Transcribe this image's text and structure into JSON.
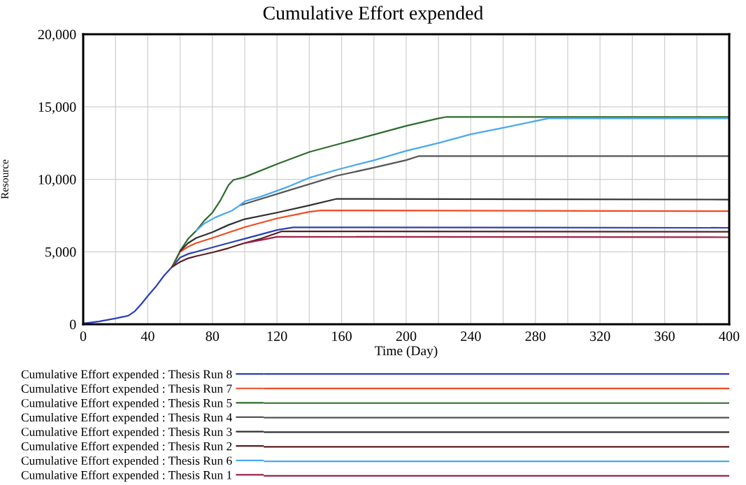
{
  "chart_data": {
    "type": "line",
    "title": "Cumulative Effort expended",
    "xlabel": "Time (Day)",
    "ylabel": "Resource",
    "xlim": [
      0,
      400
    ],
    "ylim": [
      0,
      20000
    ],
    "xticks": [
      0,
      {
        "value": 20,
        "label": null
      },
      40,
      {
        "value": 60,
        "label": null
      },
      80,
      {
        "value": 100,
        "label": null
      },
      120,
      {
        "value": 140,
        "label": null
      },
      160,
      {
        "value": 180,
        "label": null
      },
      200,
      {
        "value": 220,
        "label": null
      },
      240,
      {
        "value": 260,
        "label": null
      },
      280,
      {
        "value": 300,
        "label": null
      },
      320,
      {
        "value": 340,
        "label": null
      },
      360,
      {
        "value": 380,
        "label": null
      },
      400
    ],
    "yticks": [
      0,
      {
        "value": 5000,
        "label": "5,000"
      },
      {
        "value": 10000,
        "label": "10,000"
      },
      {
        "value": 15000,
        "label": "15,000"
      },
      {
        "value": 20000,
        "label": "20,000"
      }
    ],
    "grid": true,
    "legend": "bottom",
    "series": [
      {
        "name": "Cumulative Effort expended : Thesis Run 8",
        "color": "#2b3fb5",
        "x": [
          0,
          10,
          20,
          25,
          28,
          32,
          36,
          40,
          45,
          50,
          55,
          60,
          65,
          70,
          80,
          90,
          100,
          110,
          120,
          130,
          400
        ],
        "values": [
          50,
          200,
          400,
          520,
          600,
          900,
          1400,
          1950,
          2600,
          3350,
          3950,
          4600,
          4850,
          5000,
          5300,
          5600,
          5900,
          6200,
          6500,
          6680,
          6650
        ]
      },
      {
        "name": "Cumulative Effort expended : Thesis Run 7",
        "color": "#f04a22",
        "x": [
          55,
          60,
          65,
          70,
          80,
          100,
          120,
          140,
          147,
          400
        ],
        "values": [
          3950,
          5000,
          5350,
          5600,
          5950,
          6700,
          7300,
          7750,
          7850,
          7800
        ]
      },
      {
        "name": "Cumulative Effort expended : Thesis Run 5",
        "color": "#2e6b2e",
        "x": [
          55,
          60,
          65,
          70,
          75,
          80,
          85,
          90,
          93,
          100,
          120,
          140,
          160,
          180,
          200,
          220,
          225,
          400
        ],
        "values": [
          3950,
          5050,
          5900,
          6450,
          7150,
          7700,
          8550,
          9600,
          9950,
          10150,
          11050,
          11880,
          12480,
          13080,
          13680,
          14200,
          14300,
          14300
        ]
      },
      {
        "name": "Cumulative Effort expended : Thesis Run 4",
        "color": "#555555",
        "x": [
          97,
          100,
          127,
          157,
          180,
          200,
          208,
          400
        ],
        "values": [
          8200,
          8300,
          9220,
          10240,
          10800,
          11320,
          11600,
          11600
        ]
      },
      {
        "name": "Cumulative Effort expended : Thesis Run 3",
        "color": "#303030",
        "x": [
          60,
          65,
          70,
          80,
          90,
          100,
          120,
          140,
          157,
          400
        ],
        "values": [
          5050,
          5600,
          5950,
          6350,
          6850,
          7250,
          7700,
          8200,
          8650,
          8600
        ]
      },
      {
        "name": "Cumulative Effort expended : Thesis Run 2",
        "color": "#5a1e22",
        "x": [
          55,
          60,
          65,
          70,
          80,
          90,
          100,
          110,
          123,
          400
        ],
        "values": [
          3950,
          4300,
          4550,
          4700,
          4950,
          5250,
          5600,
          5900,
          6410,
          6380
        ]
      },
      {
        "name": "Cumulative Effort expended : Thesis Run 6",
        "color": "#4aa8f0",
        "x": [
          70,
          75,
          82,
          92,
          97,
          100,
          110,
          127,
          140,
          157,
          180,
          200,
          220,
          240,
          260,
          288,
          400
        ],
        "values": [
          6450,
          6950,
          7380,
          7830,
          8200,
          8480,
          8800,
          9490,
          10100,
          10650,
          11310,
          11960,
          12500,
          13100,
          13550,
          14200,
          14200
        ]
      },
      {
        "name": "Cumulative Effort expended : Thesis Run 1",
        "color": "#a0204a",
        "x": [
          100,
          112,
          120,
          400
        ],
        "values": [
          5600,
          5850,
          6030,
          6000
        ]
      }
    ]
  }
}
